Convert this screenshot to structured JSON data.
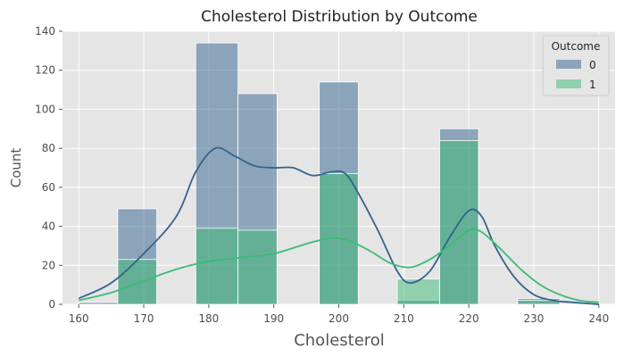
{
  "chart_data": {
    "type": "histogram",
    "title": "Cholesterol Distribution by Outcome",
    "xlabel": "Cholesterol",
    "ylabel": "Count",
    "xlim": [
      157.5,
      242.5
    ],
    "ylim": [
      0,
      140
    ],
    "x_ticks": [
      160,
      170,
      180,
      190,
      200,
      210,
      220,
      230,
      240
    ],
    "y_ticks": [
      0,
      20,
      40,
      60,
      80,
      100,
      120,
      140
    ],
    "grid": true,
    "legend": {
      "title": "Outcome",
      "position": "top-right"
    },
    "bins": [
      [
        160.0,
        166.0
      ],
      [
        166.0,
        172.0
      ],
      [
        172.0,
        178.0
      ],
      [
        178.0,
        184.5
      ],
      [
        184.5,
        190.5
      ],
      [
        190.5,
        197.0
      ],
      [
        197.0,
        203.0
      ],
      [
        203.0,
        209.0
      ],
      [
        209.0,
        215.5
      ],
      [
        215.5,
        221.5
      ],
      [
        221.5,
        227.5
      ],
      [
        227.5,
        234.0
      ],
      [
        234.0,
        240.0
      ]
    ],
    "series": [
      {
        "name": "0",
        "color": "#33638d",
        "counts": [
          1,
          49,
          0,
          134,
          108,
          0,
          114,
          0,
          2,
          90,
          0,
          3,
          0
        ],
        "kde": [
          [
            160,
            3
          ],
          [
            165,
            11
          ],
          [
            170,
            26
          ],
          [
            175,
            45
          ],
          [
            178,
            68
          ],
          [
            181,
            80
          ],
          [
            184,
            76
          ],
          [
            187,
            71
          ],
          [
            190,
            70
          ],
          [
            193,
            70
          ],
          [
            196,
            66
          ],
          [
            199,
            68
          ],
          [
            201,
            67
          ],
          [
            203,
            57
          ],
          [
            206,
            38
          ],
          [
            209,
            17
          ],
          [
            211,
            11
          ],
          [
            214,
            17
          ],
          [
            217,
            34
          ],
          [
            220,
            48
          ],
          [
            222,
            45
          ],
          [
            224,
            30
          ],
          [
            227,
            14
          ],
          [
            230,
            5
          ],
          [
            233,
            2
          ],
          [
            236,
            1
          ],
          [
            240,
            0
          ]
        ]
      },
      {
        "name": "1",
        "color": "#3cbb75",
        "counts": [
          0,
          23,
          0,
          39,
          38,
          0,
          67,
          0,
          13,
          84,
          0,
          2,
          0
        ],
        "kde": [
          [
            160,
            2
          ],
          [
            165,
            6
          ],
          [
            170,
            12
          ],
          [
            175,
            18
          ],
          [
            180,
            22
          ],
          [
            185,
            24
          ],
          [
            190,
            26
          ],
          [
            195,
            31
          ],
          [
            199,
            34
          ],
          [
            202,
            32
          ],
          [
            205,
            27
          ],
          [
            208,
            21
          ],
          [
            211,
            19
          ],
          [
            214,
            23
          ],
          [
            217,
            30
          ],
          [
            220,
            38
          ],
          [
            222,
            37
          ],
          [
            225,
            28
          ],
          [
            228,
            18
          ],
          [
            231,
            10
          ],
          [
            234,
            5
          ],
          [
            237,
            2
          ],
          [
            240,
            1
          ]
        ]
      }
    ]
  }
}
